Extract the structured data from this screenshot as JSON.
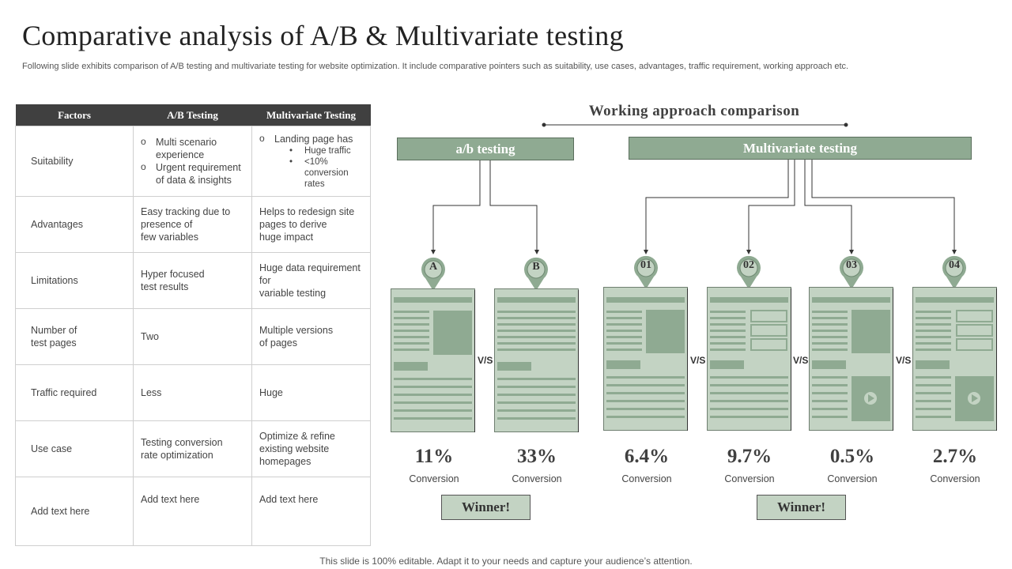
{
  "header": {
    "title": "Comparative analysis of A/B & Multivariate testing",
    "subtitle": "Following slide exhibits comparison of A/B testing and multivariate testing for website optimization. It include comparative pointers such as suitability, use cases, advantages, traffic requirement, working approach etc."
  },
  "table": {
    "headers": [
      "Factors",
      "A/B Testing",
      "Multivariate Testing"
    ],
    "suitability": {
      "factor": "Suitability",
      "ab_items": [
        "Multi scenario experience",
        "Urgent requirement of data & insights"
      ],
      "mv_item": "Landing page has",
      "mv_subitems": [
        "Huge traffic",
        "<10% conversion rates"
      ]
    },
    "rows": [
      {
        "factor": "Advantages",
        "ab": "Easy tracking due to presence of\nfew variables",
        "mv": "Helps to redesign site pages to derive\nhuge impact"
      },
      {
        "factor": "Limitations",
        "ab": "Hyper focused\ntest results",
        "mv": "Huge data requirement for\nvariable testing"
      },
      {
        "factor": "Number of\ntest pages",
        "ab": "Two",
        "mv": "Multiple versions\nof pages"
      },
      {
        "factor": "Traffic  required",
        "ab": "Less",
        "mv": "Huge"
      },
      {
        "factor": "Use case",
        "ab": "Testing conversion\nrate optimization",
        "mv": "Optimize & refine existing website\nhomepages"
      },
      {
        "factor": "Add text here",
        "ab": "Add text here",
        "mv": "Add text here"
      }
    ]
  },
  "diagram": {
    "title": "Working  approach  comparison",
    "ab_header": "a/b testing",
    "mv_header": "Multivariate testing",
    "vs_label": "V/S",
    "variants": [
      {
        "label": "A",
        "percent": "11%",
        "caption": "Conversion"
      },
      {
        "label": "B",
        "percent": "33%",
        "caption": "Conversion"
      },
      {
        "label": "01",
        "percent": "6.4%",
        "caption": "Conversion"
      },
      {
        "label": "02",
        "percent": "9.7%",
        "caption": "Conversion"
      },
      {
        "label": "03",
        "percent": "0.5%",
        "caption": "Conversion"
      },
      {
        "label": "04",
        "percent": "2.7%",
        "caption": "Conversion"
      }
    ],
    "winner_ab": "Winner!",
    "winner_mv": "Winner!"
  },
  "footer": "This slide is 100% editable. Adapt it to your needs and capture your audience’s attention.",
  "colors": {
    "accent": "#8faa92",
    "card_fill": "#c3d3c3",
    "card_dark": "#8faa92",
    "table_header": "#404040"
  }
}
